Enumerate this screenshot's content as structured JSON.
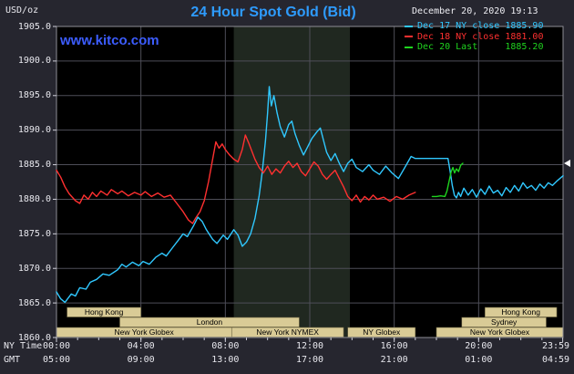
{
  "header": {
    "units": "USD/oz",
    "title": "24 Hour Spot Gold (Bid)",
    "datetime": "December 20, 2020 19:13",
    "website": "www.kitco.com"
  },
  "legend": [
    {
      "label": "Dec 17 NY close 1885.90",
      "color": "#30c8ff"
    },
    {
      "label": "Dec 18 NY close 1881.00",
      "color": "#ff3030"
    },
    {
      "label": "Dec 20 Last     1885.20",
      "color": "#1fd41f"
    }
  ],
  "axes": {
    "ny_time_caption": "NY Time",
    "gmt_caption": "GMT",
    "y_labels": [
      "1905.0",
      "1900.0",
      "1895.0",
      "1890.0",
      "1885.0",
      "1880.0",
      "1875.0",
      "1870.0",
      "1865.0",
      "1860.0"
    ],
    "x_ticks": [
      {
        "hour": 0,
        "ny": "00:00",
        "gmt": "05:00"
      },
      {
        "hour": 4,
        "ny": "04:00",
        "gmt": "09:00"
      },
      {
        "hour": 8,
        "ny": "08:00",
        "gmt": "13:00"
      },
      {
        "hour": 12,
        "ny": "12:00",
        "gmt": "17:00"
      },
      {
        "hour": 16,
        "ny": "16:00",
        "gmt": "21:00"
      },
      {
        "hour": 20,
        "ny": "20:00",
        "gmt": "01:00"
      },
      {
        "hour": 23.983,
        "ny": "23:59",
        "gmt": "04:59"
      }
    ]
  },
  "chart_data": {
    "type": "line",
    "title": "24 Hour Spot Gold (Bid)",
    "ylabel": "USD/oz",
    "ylim": [
      1860,
      1905
    ],
    "xlim_hours": [
      0,
      24
    ],
    "grid": true,
    "legend_position": "top-right",
    "nymex_shade_hours": [
      8.4,
      13.9
    ],
    "last_price_marker": 1885.2,
    "colors": {
      "background": "#26262f",
      "plot_bg": "#000000",
      "shade": "#202820",
      "grid": "#4e4e58",
      "border": "#8e8e96",
      "tick": "#cfcfd8",
      "text": "#e8e8ee",
      "title_blue": "#2e9bfc",
      "link_blue": "#3c5dff",
      "band_fill": "#d9cb96",
      "band_stroke": "#6b6340",
      "marker": "#ffffff"
    },
    "series": [
      {
        "id": "dec17",
        "name": "Dec 17",
        "color": "#30c8ff",
        "close": 1885.9,
        "points": [
          [
            0.0,
            1866.6
          ],
          [
            0.2,
            1865.6
          ],
          [
            0.4,
            1865.1
          ],
          [
            0.7,
            1866.3
          ],
          [
            0.9,
            1866.0
          ],
          [
            1.1,
            1867.2
          ],
          [
            1.4,
            1867.0
          ],
          [
            1.6,
            1868.0
          ],
          [
            1.9,
            1868.4
          ],
          [
            2.2,
            1869.2
          ],
          [
            2.5,
            1869.0
          ],
          [
            2.9,
            1869.8
          ],
          [
            3.1,
            1870.6
          ],
          [
            3.3,
            1870.2
          ],
          [
            3.6,
            1870.9
          ],
          [
            3.9,
            1870.4
          ],
          [
            4.1,
            1871.0
          ],
          [
            4.4,
            1870.6
          ],
          [
            4.7,
            1871.6
          ],
          [
            5.0,
            1872.2
          ],
          [
            5.2,
            1871.8
          ],
          [
            5.5,
            1873.0
          ],
          [
            5.8,
            1874.2
          ],
          [
            6.0,
            1875.0
          ],
          [
            6.2,
            1874.6
          ],
          [
            6.5,
            1876.2
          ],
          [
            6.7,
            1877.4
          ],
          [
            6.9,
            1876.8
          ],
          [
            7.1,
            1875.6
          ],
          [
            7.4,
            1874.2
          ],
          [
            7.6,
            1873.6
          ],
          [
            7.9,
            1874.8
          ],
          [
            8.1,
            1874.2
          ],
          [
            8.4,
            1875.6
          ],
          [
            8.6,
            1874.8
          ],
          [
            8.8,
            1873.2
          ],
          [
            9.0,
            1873.8
          ],
          [
            9.2,
            1875.0
          ],
          [
            9.4,
            1877.2
          ],
          [
            9.6,
            1880.5
          ],
          [
            9.75,
            1884.0
          ],
          [
            9.9,
            1888.5
          ],
          [
            10.0,
            1892.5
          ],
          [
            10.08,
            1896.3
          ],
          [
            10.18,
            1893.5
          ],
          [
            10.3,
            1895.0
          ],
          [
            10.45,
            1892.5
          ],
          [
            10.6,
            1890.5
          ],
          [
            10.8,
            1889.0
          ],
          [
            11.0,
            1890.8
          ],
          [
            11.15,
            1891.3
          ],
          [
            11.3,
            1889.5
          ],
          [
            11.5,
            1887.8
          ],
          [
            11.7,
            1886.4
          ],
          [
            11.9,
            1887.6
          ],
          [
            12.1,
            1888.8
          ],
          [
            12.35,
            1889.8
          ],
          [
            12.5,
            1890.3
          ],
          [
            12.65,
            1888.5
          ],
          [
            12.8,
            1886.8
          ],
          [
            13.0,
            1885.6
          ],
          [
            13.2,
            1886.6
          ],
          [
            13.4,
            1885.2
          ],
          [
            13.6,
            1884.0
          ],
          [
            13.8,
            1885.2
          ],
          [
            14.0,
            1885.8
          ],
          [
            14.2,
            1884.6
          ],
          [
            14.5,
            1884.0
          ],
          [
            14.8,
            1885.0
          ],
          [
            15.0,
            1884.2
          ],
          [
            15.3,
            1883.6
          ],
          [
            15.6,
            1884.8
          ],
          [
            15.9,
            1883.8
          ],
          [
            16.2,
            1883.0
          ],
          [
            16.5,
            1884.6
          ],
          [
            16.8,
            1886.2
          ],
          [
            17.0,
            1885.9
          ],
          [
            18.55,
            1885.9
          ],
          [
            18.65,
            1884.0
          ],
          [
            18.75,
            1882.0
          ],
          [
            18.85,
            1880.6
          ],
          [
            18.95,
            1880.2
          ],
          [
            19.05,
            1881.0
          ],
          [
            19.15,
            1880.4
          ],
          [
            19.3,
            1881.6
          ],
          [
            19.5,
            1880.6
          ],
          [
            19.7,
            1881.4
          ],
          [
            19.9,
            1880.3
          ],
          [
            20.1,
            1881.5
          ],
          [
            20.3,
            1880.7
          ],
          [
            20.5,
            1881.9
          ],
          [
            20.7,
            1880.9
          ],
          [
            20.9,
            1881.3
          ],
          [
            21.1,
            1880.5
          ],
          [
            21.3,
            1881.7
          ],
          [
            21.5,
            1881.0
          ],
          [
            21.7,
            1882.0
          ],
          [
            21.9,
            1881.2
          ],
          [
            22.1,
            1882.4
          ],
          [
            22.3,
            1881.6
          ],
          [
            22.5,
            1882.0
          ],
          [
            22.7,
            1881.3
          ],
          [
            22.9,
            1882.2
          ],
          [
            23.1,
            1881.6
          ],
          [
            23.3,
            1882.4
          ],
          [
            23.5,
            1882.0
          ],
          [
            23.7,
            1882.6
          ],
          [
            23.85,
            1883.0
          ],
          [
            24.0,
            1883.4
          ]
        ]
      },
      {
        "id": "dec18",
        "name": "Dec 18",
        "color": "#ff3030",
        "close": 1881.0,
        "points": [
          [
            0.0,
            1884.2
          ],
          [
            0.2,
            1883.2
          ],
          [
            0.4,
            1881.8
          ],
          [
            0.6,
            1880.8
          ],
          [
            0.9,
            1879.8
          ],
          [
            1.1,
            1879.4
          ],
          [
            1.3,
            1880.6
          ],
          [
            1.5,
            1880.0
          ],
          [
            1.7,
            1881.0
          ],
          [
            1.9,
            1880.4
          ],
          [
            2.1,
            1881.2
          ],
          [
            2.4,
            1880.6
          ],
          [
            2.6,
            1881.4
          ],
          [
            2.9,
            1880.8
          ],
          [
            3.1,
            1881.2
          ],
          [
            3.4,
            1880.5
          ],
          [
            3.7,
            1881.0
          ],
          [
            4.0,
            1880.6
          ],
          [
            4.2,
            1881.1
          ],
          [
            4.5,
            1880.4
          ],
          [
            4.8,
            1880.9
          ],
          [
            5.1,
            1880.3
          ],
          [
            5.4,
            1880.6
          ],
          [
            5.7,
            1879.4
          ],
          [
            6.0,
            1878.2
          ],
          [
            6.25,
            1877.0
          ],
          [
            6.45,
            1876.5
          ],
          [
            6.6,
            1877.3
          ],
          [
            6.8,
            1878.2
          ],
          [
            7.0,
            1879.8
          ],
          [
            7.2,
            1882.5
          ],
          [
            7.4,
            1885.8
          ],
          [
            7.55,
            1888.3
          ],
          [
            7.7,
            1887.4
          ],
          [
            7.85,
            1888.0
          ],
          [
            8.0,
            1887.2
          ],
          [
            8.2,
            1886.4
          ],
          [
            8.4,
            1885.8
          ],
          [
            8.6,
            1885.4
          ],
          [
            8.8,
            1887.2
          ],
          [
            8.95,
            1889.3
          ],
          [
            9.1,
            1888.2
          ],
          [
            9.25,
            1887.0
          ],
          [
            9.4,
            1885.8
          ],
          [
            9.6,
            1884.6
          ],
          [
            9.8,
            1883.8
          ],
          [
            10.0,
            1884.8
          ],
          [
            10.2,
            1883.6
          ],
          [
            10.4,
            1884.4
          ],
          [
            10.6,
            1883.8
          ],
          [
            10.8,
            1884.8
          ],
          [
            11.0,
            1885.5
          ],
          [
            11.2,
            1884.6
          ],
          [
            11.4,
            1885.2
          ],
          [
            11.6,
            1884.0
          ],
          [
            11.8,
            1883.4
          ],
          [
            12.0,
            1884.4
          ],
          [
            12.2,
            1885.4
          ],
          [
            12.4,
            1884.8
          ],
          [
            12.6,
            1883.6
          ],
          [
            12.8,
            1882.9
          ],
          [
            13.0,
            1883.6
          ],
          [
            13.2,
            1884.2
          ],
          [
            13.4,
            1883.0
          ],
          [
            13.6,
            1881.8
          ],
          [
            13.8,
            1880.4
          ],
          [
            14.0,
            1879.8
          ],
          [
            14.2,
            1880.6
          ],
          [
            14.4,
            1879.6
          ],
          [
            14.6,
            1880.4
          ],
          [
            14.8,
            1879.9
          ],
          [
            15.0,
            1880.6
          ],
          [
            15.2,
            1880.0
          ],
          [
            15.5,
            1880.3
          ],
          [
            15.8,
            1879.7
          ],
          [
            16.1,
            1880.4
          ],
          [
            16.4,
            1880.0
          ],
          [
            16.7,
            1880.6
          ],
          [
            17.0,
            1881.0
          ]
        ]
      },
      {
        "id": "dec20",
        "name": "Dec 20",
        "color": "#1fd41f",
        "last": 1885.2,
        "points": [
          [
            17.8,
            1880.4
          ],
          [
            18.0,
            1880.4
          ],
          [
            18.2,
            1880.5
          ],
          [
            18.4,
            1880.4
          ],
          [
            18.5,
            1881.2
          ],
          [
            18.6,
            1882.6
          ],
          [
            18.7,
            1884.0
          ],
          [
            18.78,
            1884.6
          ],
          [
            18.86,
            1883.8
          ],
          [
            18.95,
            1884.4
          ],
          [
            19.05,
            1884.0
          ],
          [
            19.15,
            1884.9
          ],
          [
            19.25,
            1885.2
          ]
        ]
      }
    ],
    "sessions": [
      {
        "label": "Hong Kong",
        "row": 0,
        "start": 0.5,
        "end": 4.0
      },
      {
        "label": "Hong Kong",
        "row": 0,
        "start": 20.3,
        "end": 23.7
      },
      {
        "label": "London",
        "row": 1,
        "start": 3.0,
        "end": 11.5
      },
      {
        "label": "Sydney",
        "row": 1,
        "start": 19.2,
        "end": 23.2
      },
      {
        "label": "New York Globex",
        "row": 2,
        "start": 0.0,
        "end": 8.3
      },
      {
        "label": "New York NYMEX",
        "row": 2,
        "start": 8.3,
        "end": 13.6
      },
      {
        "label": "NY Globex",
        "row": 2,
        "start": 13.8,
        "end": 17.0
      },
      {
        "label": "New York Globex",
        "row": 2,
        "start": 18.0,
        "end": 24.0
      }
    ]
  }
}
